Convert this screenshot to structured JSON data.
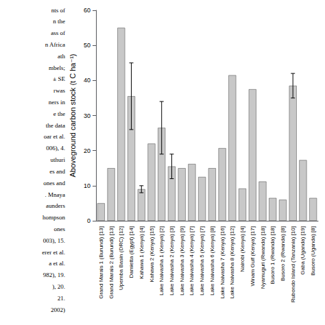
{
  "chart_data": {
    "type": "bar",
    "categories": [
      "Grand Marais 1 (Burundi) [13]",
      "Grand Marais 2 (Burundi) [13]",
      "Upemba Basin (DRC) [12]",
      "Damietta (Egypt) [14]",
      "Kahawa 1 (Kenya) [4]",
      "Kahawa 2 (Kenya) [15]",
      "Lake Naivasha 1 (Kenya) [2]",
      "Lake Naivasha 2 (Kenya) [3]",
      "Lake Naivasha 3 (Kenya) [9]",
      "Lake Naivasha 4 (Kenya) [7]",
      "Lake Naivasha 5 (Kenya) [7]",
      "Lake Naivasha 6 (Kenya) [8]",
      "Lake Naivasha 7 (Kenya) [16]",
      "Lake Naivasha 8 (Kenya) [12]",
      "Nairobi (Kenya) [4]",
      "Winam Gulf (Kenya) [17]",
      "Nyamuguri (Rwanda) [18]",
      "Busoro 1 (Rwanda) [18]",
      "Busoro 2 (Rwanda) [8]",
      "Rubondo Island (Tanzania) [10]",
      "Gaba (Uganda) [19]",
      "Busoro (Uganda) [8]"
    ],
    "values": [
      5.0,
      15.0,
      55.0,
      35.5,
      9.0,
      22.0,
      26.5,
      15.5,
      15.0,
      16.2,
      12.5,
      15.0,
      20.7,
      41.5,
      9.2,
      37.5,
      11.2,
      6.5,
      6.0,
      38.5,
      17.3,
      6.5
    ],
    "errors": [
      null,
      null,
      null,
      9.5,
      1.0,
      null,
      7.5,
      3.5,
      null,
      null,
      null,
      null,
      null,
      null,
      null,
      null,
      null,
      null,
      null,
      3.5,
      null,
      null
    ],
    "ylabel": "Aboveground carbon stock (t C ha⁻¹)",
    "ylim": [
      0,
      60
    ],
    "yticks": [
      0,
      10,
      20,
      30,
      40,
      50,
      60
    ],
    "color": "#c8c8c8",
    "grid": false,
    "annotations": [
      "nts of",
      "n the",
      "ass of",
      "n Africa",
      "ath",
      "mbels;",
      "± SE",
      "rwas",
      "ners in",
      "e the",
      "the data",
      "oar et al.",
      "006), 4.",
      "uthuri",
      "es and",
      "ones and",
      ". Mnaya",
      "aunders",
      "hompson",
      "ones",
      "003), 15.",
      "erer et al.",
      "a et al.",
      "982), 19.",
      "), 20.",
      "21.",
      "2002)"
    ]
  }
}
